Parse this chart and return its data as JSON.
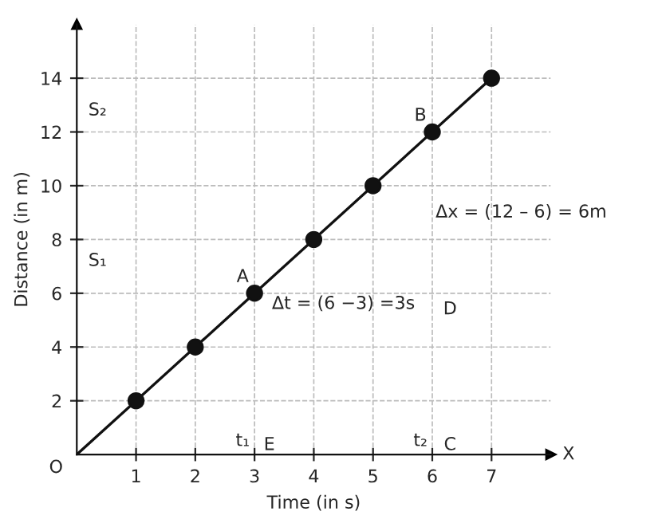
{
  "chart_data": {
    "type": "line",
    "xlabel": "Time (in s)",
    "ylabel": "Distance (in m)",
    "series": [
      {
        "color": "#111111",
        "x": [
          0,
          7
        ],
        "values": [
          0,
          14
        ],
        "marker": "none"
      },
      {
        "type": "scatter",
        "color": "#111111",
        "x": [
          1,
          2,
          3,
          4,
          5,
          6,
          7
        ],
        "values": [
          2,
          4,
          6,
          8,
          10,
          12,
          14
        ],
        "marker": "circle"
      }
    ],
    "xlim": [
      0,
      8
    ],
    "ylim": [
      0,
      16
    ],
    "xticks": [
      1,
      2,
      3,
      4,
      5,
      6,
      7
    ],
    "yticks": [
      2,
      4,
      6,
      8,
      10,
      12,
      14
    ],
    "grid": true,
    "annotations": [
      "O",
      "A",
      "B",
      "D",
      "E",
      "C",
      "S₁",
      "S₂",
      "t₁",
      "t₂",
      "X",
      "Δt = (6 −3) =3s",
      "Δx = (12 – 6) = 6m"
    ]
  }
}
